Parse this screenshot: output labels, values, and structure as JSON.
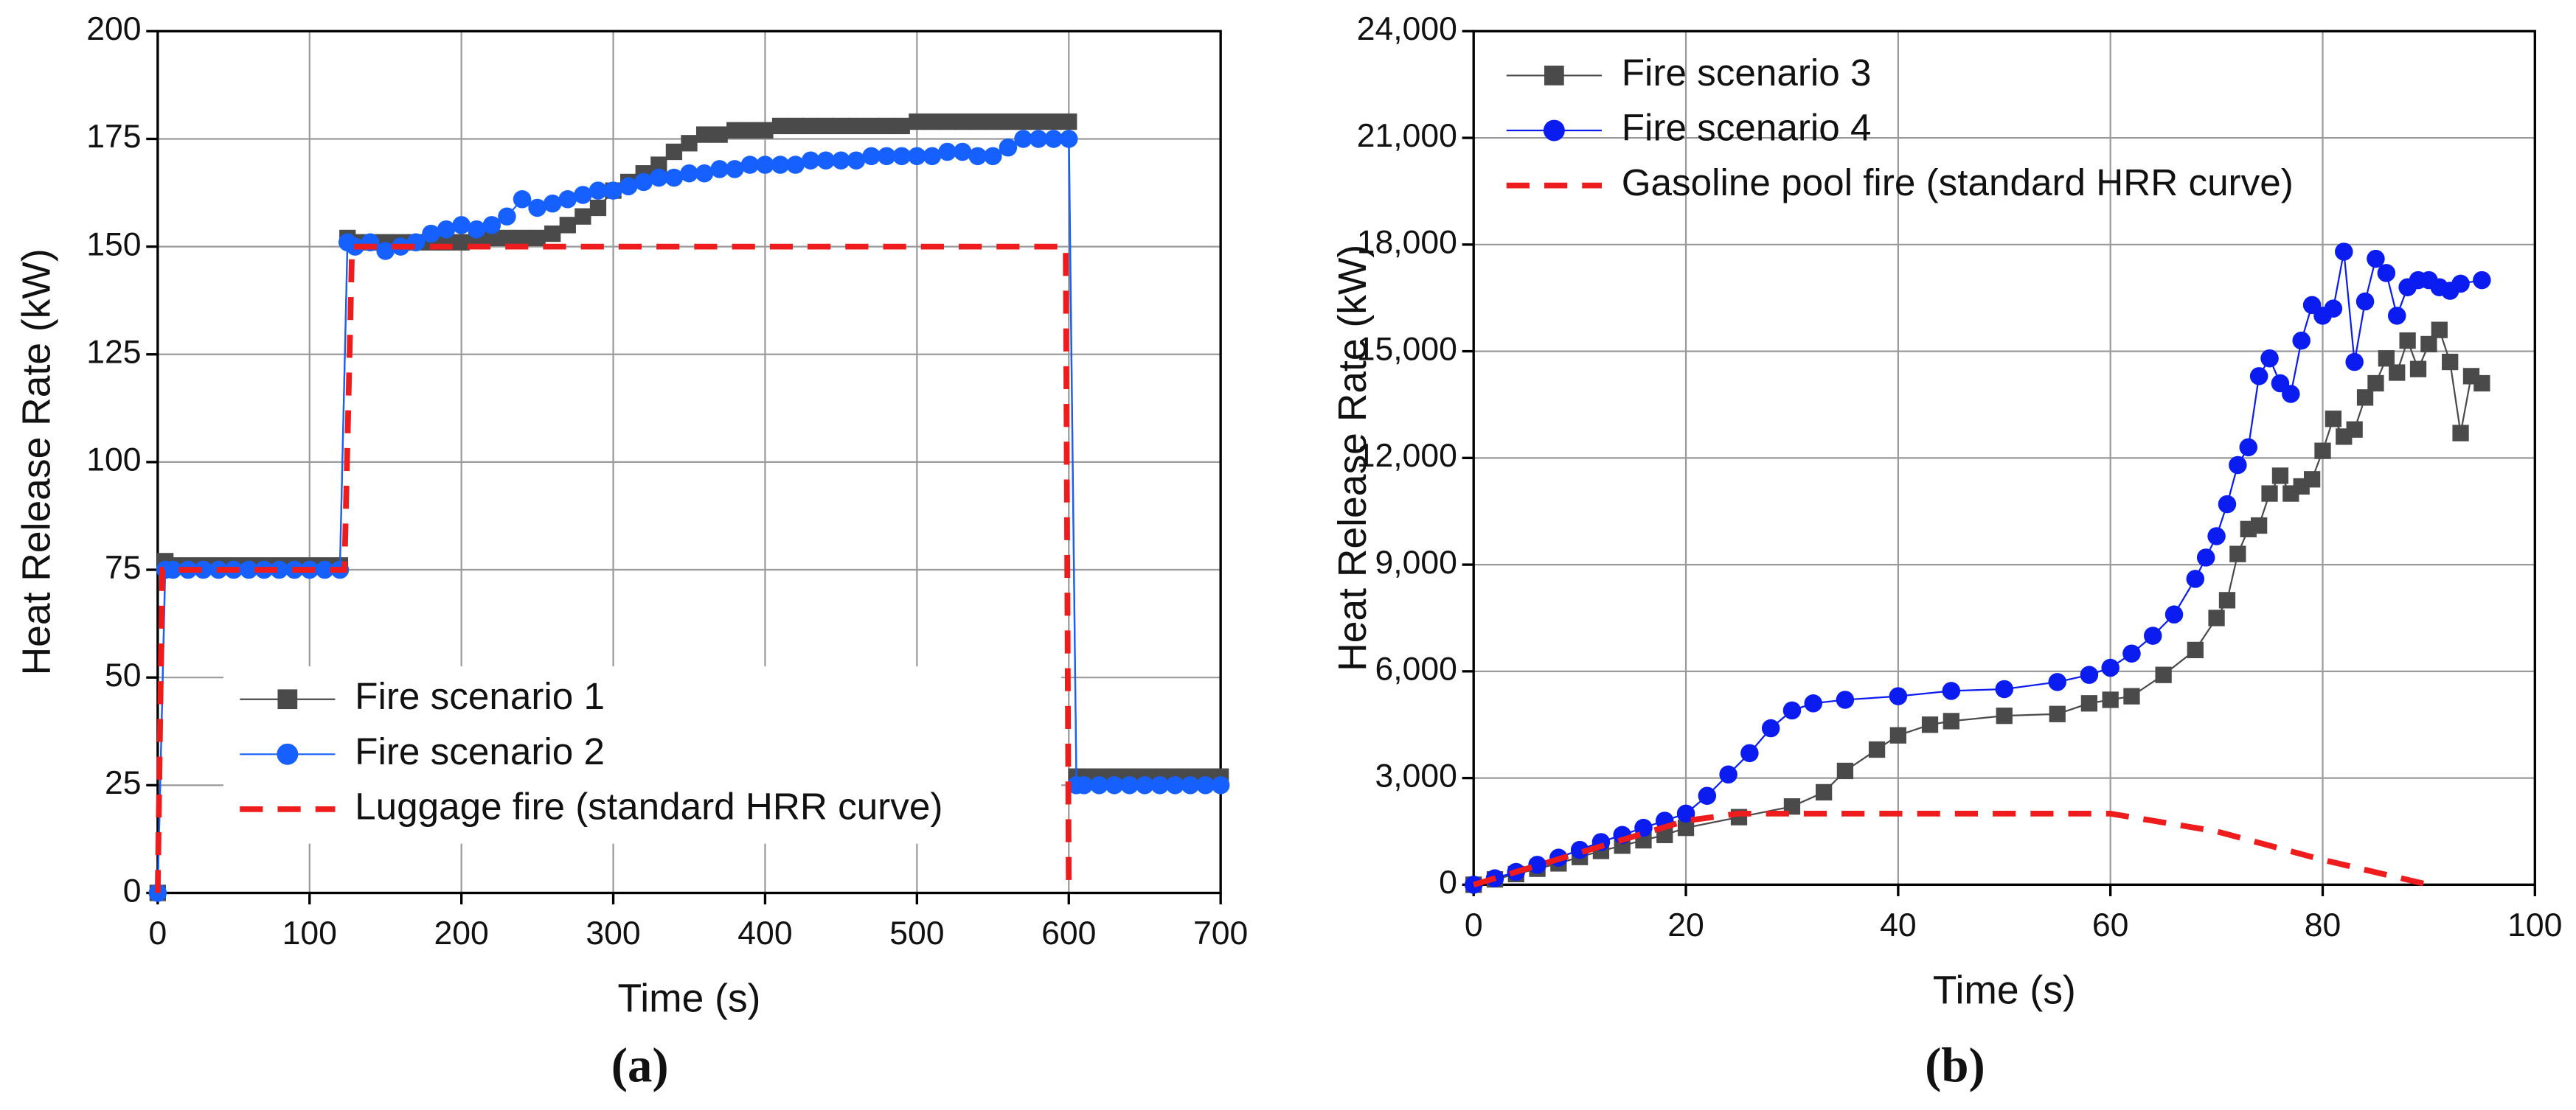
{
  "chart_data": [
    {
      "type": "line",
      "caption": "(a)",
      "xlabel": "Time (s)",
      "ylabel": "Heat Release Rate (kW)",
      "xlim": [
        0,
        700
      ],
      "xticks": [
        0,
        100,
        200,
        300,
        400,
        500,
        600,
        700
      ],
      "ylim": [
        0,
        200
      ],
      "yticks": [
        0,
        25,
        50,
        75,
        100,
        125,
        150,
        175,
        200
      ],
      "grid": true,
      "legend": "lower center",
      "series": [
        {
          "name": "Fire scenario 1",
          "color": "#4a4a4a",
          "marker": "square",
          "x": [
            0,
            5,
            10,
            20,
            30,
            40,
            50,
            60,
            70,
            80,
            90,
            100,
            110,
            120,
            125,
            130,
            140,
            150,
            160,
            170,
            180,
            190,
            200,
            210,
            220,
            230,
            240,
            250,
            260,
            270,
            280,
            290,
            300,
            310,
            320,
            330,
            340,
            350,
            360,
            370,
            380,
            390,
            400,
            410,
            420,
            430,
            440,
            450,
            460,
            470,
            480,
            490,
            500,
            510,
            520,
            530,
            540,
            550,
            560,
            570,
            580,
            590,
            600,
            605,
            610,
            620,
            630,
            640,
            650,
            660,
            670,
            680,
            690,
            700
          ],
          "values": [
            0,
            77,
            76,
            76,
            76,
            76,
            76,
            76,
            76,
            76,
            76,
            76,
            76,
            76,
            152,
            151,
            151,
            151,
            151,
            151,
            151,
            151,
            151,
            152,
            152,
            152,
            152,
            152,
            153,
            155,
            157,
            159,
            163,
            165,
            167,
            169,
            172,
            174,
            176,
            176,
            177,
            177,
            177,
            178,
            178,
            178,
            178,
            178,
            178,
            178,
            178,
            178,
            179,
            179,
            179,
            179,
            179,
            179,
            179,
            179,
            179,
            179,
            179,
            27,
            27,
            27,
            27,
            27,
            27,
            27,
            27,
            27,
            27,
            27
          ]
        },
        {
          "name": "Fire scenario 2",
          "color": "#1560ff",
          "marker": "circle",
          "x": [
            0,
            5,
            10,
            20,
            30,
            40,
            50,
            60,
            70,
            80,
            90,
            100,
            110,
            120,
            125,
            130,
            140,
            150,
            160,
            170,
            180,
            190,
            200,
            210,
            220,
            230,
            240,
            250,
            260,
            270,
            280,
            290,
            300,
            310,
            320,
            330,
            340,
            350,
            360,
            370,
            380,
            390,
            400,
            410,
            420,
            430,
            440,
            450,
            460,
            470,
            480,
            490,
            500,
            510,
            520,
            530,
            540,
            550,
            560,
            570,
            580,
            590,
            600,
            605,
            610,
            620,
            630,
            640,
            650,
            660,
            670,
            680,
            690,
            700
          ],
          "values": [
            0,
            75,
            75,
            75,
            75,
            75,
            75,
            75,
            75,
            75,
            75,
            75,
            75,
            75,
            151,
            150,
            151,
            149,
            150,
            151,
            153,
            154,
            155,
            154,
            155,
            157,
            161,
            159,
            160,
            161,
            162,
            163,
            163,
            164,
            165,
            166,
            166,
            167,
            167,
            168,
            168,
            169,
            169,
            169,
            169,
            170,
            170,
            170,
            170,
            171,
            171,
            171,
            171,
            171,
            172,
            172,
            171,
            171,
            173,
            175,
            175,
            175,
            175,
            25,
            25,
            25,
            25,
            25,
            25,
            25,
            25,
            25,
            25,
            25
          ]
        },
        {
          "name": "Luggage fire (standard HRR curve)",
          "color": "#ee1c1c",
          "dash": true,
          "x": [
            0,
            3,
            123,
            128,
            598,
            600
          ],
          "values": [
            0,
            75,
            75,
            150,
            150,
            0
          ]
        }
      ]
    },
    {
      "type": "line",
      "caption": "(b)",
      "xlabel": "Time (s)",
      "ylabel": "Heat Release Rate (kW)",
      "xlim": [
        0,
        100
      ],
      "xticks": [
        0,
        20,
        40,
        60,
        80,
        100
      ],
      "ylim": [
        0,
        24000
      ],
      "yticks": [
        0,
        {
          "value": 3000,
          "label": "3,000"
        },
        {
          "value": 6000,
          "label": "6,000"
        },
        {
          "value": 9000,
          "label": "9,000"
        },
        {
          "value": 12000,
          "label": "12,000"
        },
        {
          "value": 15000,
          "label": "15,000"
        },
        {
          "value": 18000,
          "label": "18,000"
        },
        {
          "value": 21000,
          "label": "21,000"
        },
        {
          "value": 24000,
          "label": "24,000"
        }
      ],
      "grid": true,
      "legend": "upper left",
      "series": [
        {
          "name": "Fire scenario 3",
          "color": "#4a4a4a",
          "marker": "square",
          "x": [
            0,
            2,
            4,
            6,
            8,
            10,
            12,
            14,
            16,
            18,
            20,
            25,
            30,
            33,
            35,
            38,
            40,
            43,
            45,
            50,
            55,
            58,
            60,
            62,
            65,
            68,
            70,
            71,
            72,
            73,
            74,
            75,
            76,
            77,
            78,
            79,
            80,
            81,
            82,
            83,
            84,
            85,
            86,
            87,
            88,
            89,
            90,
            91,
            92,
            93,
            94,
            95
          ],
          "values": [
            0,
            150,
            300,
            450,
            600,
            780,
            950,
            1100,
            1250,
            1400,
            1600,
            1900,
            2200,
            2600,
            3200,
            3800,
            4200,
            4500,
            4600,
            4750,
            4800,
            5100,
            5200,
            5300,
            5900,
            6600,
            7500,
            8000,
            9300,
            10000,
            10100,
            11000,
            11500,
            11000,
            11200,
            11400,
            12200,
            13100,
            12600,
            12800,
            13700,
            14100,
            14800,
            14400,
            15300,
            14500,
            15200,
            15600,
            14700,
            12700,
            14300,
            14100
          ]
        },
        {
          "name": "Fire scenario 4",
          "color": "#0a1cf0",
          "marker": "circle",
          "x": [
            0,
            2,
            4,
            6,
            8,
            10,
            12,
            14,
            16,
            18,
            20,
            22,
            24,
            26,
            28,
            30,
            32,
            35,
            40,
            45,
            50,
            55,
            58,
            60,
            62,
            64,
            66,
            68,
            69,
            70,
            71,
            72,
            73,
            74,
            75,
            76,
            77,
            78,
            79,
            80,
            81,
            82,
            83,
            84,
            85,
            86,
            87,
            88,
            89,
            90,
            91,
            92,
            93,
            95
          ],
          "values": [
            0,
            180,
            360,
            560,
            760,
            980,
            1200,
            1400,
            1600,
            1800,
            2000,
            2500,
            3100,
            3700,
            4400,
            4900,
            5100,
            5200,
            5300,
            5450,
            5500,
            5700,
            5900,
            6100,
            6500,
            7000,
            7600,
            8600,
            9200,
            9800,
            10700,
            11800,
            12300,
            14300,
            14800,
            14100,
            13800,
            15300,
            16300,
            16000,
            16200,
            17800,
            14700,
            16400,
            17600,
            17200,
            16000,
            16800,
            17000,
            17000,
            16800,
            16700,
            16900,
            17000
          ]
        },
        {
          "name": "Gasoline pool fire (standard HRR curve)",
          "color": "#ee1c1c",
          "dash": true,
          "x": [
            0,
            10,
            20,
            25,
            30,
            60,
            70,
            80,
            90
          ],
          "values": [
            0,
            900,
            1800,
            2000,
            2000,
            2000,
            1500,
            700,
            0
          ]
        }
      ]
    }
  ]
}
